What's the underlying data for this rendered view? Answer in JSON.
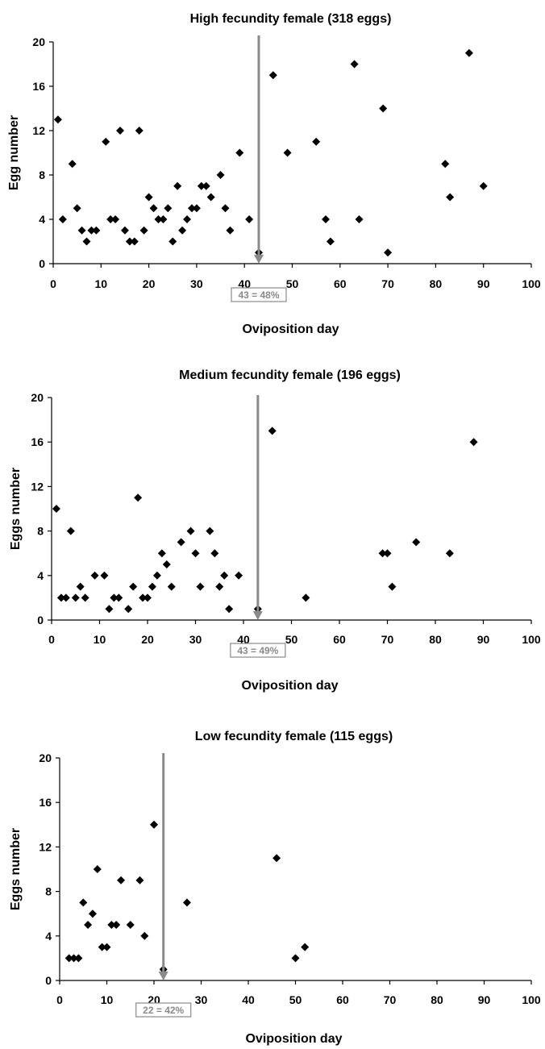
{
  "chart_data": [
    {
      "type": "scatter",
      "title": "High fecundity female (318 eggs)",
      "xlabel": "Oviposition day",
      "ylabel": "Egg number",
      "xlim": [
        0,
        100
      ],
      "ylim": [
        0,
        20
      ],
      "xticks": [
        0,
        10,
        20,
        30,
        40,
        50,
        60,
        70,
        80,
        90,
        100
      ],
      "yticks": [
        0,
        4,
        8,
        12,
        16,
        20
      ],
      "grid": false,
      "marker": "diamond",
      "marker_color": "#000000",
      "annotation": {
        "x": 43,
        "label": "43 = 48%",
        "color": "#8a8a8a"
      },
      "points": [
        {
          "x": 1,
          "y": 13
        },
        {
          "x": 2,
          "y": 4
        },
        {
          "x": 4,
          "y": 9
        },
        {
          "x": 5,
          "y": 5
        },
        {
          "x": 6,
          "y": 3
        },
        {
          "x": 7,
          "y": 2
        },
        {
          "x": 8,
          "y": 3
        },
        {
          "x": 9,
          "y": 3
        },
        {
          "x": 11,
          "y": 11
        },
        {
          "x": 12,
          "y": 4
        },
        {
          "x": 13,
          "y": 4
        },
        {
          "x": 14,
          "y": 12
        },
        {
          "x": 15,
          "y": 3
        },
        {
          "x": 16,
          "y": 2
        },
        {
          "x": 17,
          "y": 2
        },
        {
          "x": 18,
          "y": 12
        },
        {
          "x": 19,
          "y": 3
        },
        {
          "x": 20,
          "y": 6
        },
        {
          "x": 21,
          "y": 5
        },
        {
          "x": 22,
          "y": 4
        },
        {
          "x": 23,
          "y": 4
        },
        {
          "x": 24,
          "y": 5
        },
        {
          "x": 25,
          "y": 2
        },
        {
          "x": 26,
          "y": 7
        },
        {
          "x": 27,
          "y": 3
        },
        {
          "x": 28,
          "y": 4
        },
        {
          "x": 29,
          "y": 5
        },
        {
          "x": 30,
          "y": 5
        },
        {
          "x": 31,
          "y": 7
        },
        {
          "x": 32,
          "y": 7
        },
        {
          "x": 33,
          "y": 6
        },
        {
          "x": 35,
          "y": 8
        },
        {
          "x": 36,
          "y": 5
        },
        {
          "x": 37,
          "y": 3
        },
        {
          "x": 39,
          "y": 10
        },
        {
          "x": 41,
          "y": 4
        },
        {
          "x": 43,
          "y": 1
        },
        {
          "x": 46,
          "y": 17
        },
        {
          "x": 49,
          "y": 10
        },
        {
          "x": 55,
          "y": 11
        },
        {
          "x": 57,
          "y": 4
        },
        {
          "x": 58,
          "y": 2
        },
        {
          "x": 63,
          "y": 18
        },
        {
          "x": 64,
          "y": 4
        },
        {
          "x": 69,
          "y": 14
        },
        {
          "x": 70,
          "y": 1
        },
        {
          "x": 82,
          "y": 9
        },
        {
          "x": 83,
          "y": 6
        },
        {
          "x": 87,
          "y": 19
        },
        {
          "x": 90,
          "y": 7
        }
      ]
    },
    {
      "type": "scatter",
      "title": "Medium fecundity female (196 eggs)",
      "xlabel": "Oviposition day",
      "ylabel": "Eggs number",
      "xlim": [
        0,
        100
      ],
      "ylim": [
        0,
        20
      ],
      "xticks": [
        0,
        10,
        20,
        30,
        40,
        50,
        60,
        70,
        80,
        90,
        100
      ],
      "yticks": [
        0,
        4,
        8,
        12,
        16,
        20
      ],
      "grid": false,
      "marker": "diamond",
      "marker_color": "#000000",
      "annotation": {
        "x": 43,
        "label": "43 = 49%",
        "color": "#8a8a8a"
      },
      "points": [
        {
          "x": 1,
          "y": 10
        },
        {
          "x": 2,
          "y": 2
        },
        {
          "x": 3,
          "y": 2
        },
        {
          "x": 4,
          "y": 8
        },
        {
          "x": 5,
          "y": 2
        },
        {
          "x": 6,
          "y": 3
        },
        {
          "x": 7,
          "y": 2
        },
        {
          "x": 9,
          "y": 4
        },
        {
          "x": 11,
          "y": 4
        },
        {
          "x": 12,
          "y": 1
        },
        {
          "x": 13,
          "y": 2
        },
        {
          "x": 14,
          "y": 2
        },
        {
          "x": 16,
          "y": 1
        },
        {
          "x": 17,
          "y": 3
        },
        {
          "x": 18,
          "y": 11
        },
        {
          "x": 19,
          "y": 2
        },
        {
          "x": 20,
          "y": 2
        },
        {
          "x": 21,
          "y": 3
        },
        {
          "x": 22,
          "y": 4
        },
        {
          "x": 23,
          "y": 6
        },
        {
          "x": 24,
          "y": 5
        },
        {
          "x": 25,
          "y": 3
        },
        {
          "x": 27,
          "y": 7
        },
        {
          "x": 29,
          "y": 8
        },
        {
          "x": 30,
          "y": 6
        },
        {
          "x": 31,
          "y": 3
        },
        {
          "x": 33,
          "y": 8
        },
        {
          "x": 34,
          "y": 6
        },
        {
          "x": 35,
          "y": 3
        },
        {
          "x": 36,
          "y": 4
        },
        {
          "x": 37,
          "y": 1
        },
        {
          "x": 39,
          "y": 4
        },
        {
          "x": 43,
          "y": 1
        },
        {
          "x": 46,
          "y": 17
        },
        {
          "x": 53,
          "y": 2
        },
        {
          "x": 69,
          "y": 6
        },
        {
          "x": 70,
          "y": 6
        },
        {
          "x": 71,
          "y": 3
        },
        {
          "x": 76,
          "y": 7
        },
        {
          "x": 83,
          "y": 6
        },
        {
          "x": 88,
          "y": 16
        }
      ]
    },
    {
      "type": "scatter",
      "title": "Low fecundity female (115 eggs)",
      "xlabel": "Oviposition day",
      "ylabel": "Eggs number",
      "xlim": [
        0,
        100
      ],
      "ylim": [
        0,
        20
      ],
      "xticks": [
        0,
        10,
        20,
        30,
        40,
        50,
        60,
        70,
        80,
        90,
        100
      ],
      "yticks": [
        0,
        4,
        8,
        12,
        16,
        20
      ],
      "grid": false,
      "marker": "diamond",
      "marker_color": "#000000",
      "annotation": {
        "x": 22,
        "label": "22 = 42%",
        "color": "#8a8a8a"
      },
      "points": [
        {
          "x": 2,
          "y": 2
        },
        {
          "x": 3,
          "y": 2
        },
        {
          "x": 4,
          "y": 2
        },
        {
          "x": 5,
          "y": 7
        },
        {
          "x": 6,
          "y": 5
        },
        {
          "x": 7,
          "y": 6
        },
        {
          "x": 8,
          "y": 10
        },
        {
          "x": 9,
          "y": 3
        },
        {
          "x": 10,
          "y": 3
        },
        {
          "x": 11,
          "y": 5
        },
        {
          "x": 12,
          "y": 5
        },
        {
          "x": 13,
          "y": 9
        },
        {
          "x": 15,
          "y": 5
        },
        {
          "x": 17,
          "y": 9
        },
        {
          "x": 18,
          "y": 4
        },
        {
          "x": 20,
          "y": 14
        },
        {
          "x": 22,
          "y": 1
        },
        {
          "x": 27,
          "y": 7
        },
        {
          "x": 46,
          "y": 11
        },
        {
          "x": 50,
          "y": 2
        },
        {
          "x": 52,
          "y": 3
        }
      ]
    }
  ]
}
